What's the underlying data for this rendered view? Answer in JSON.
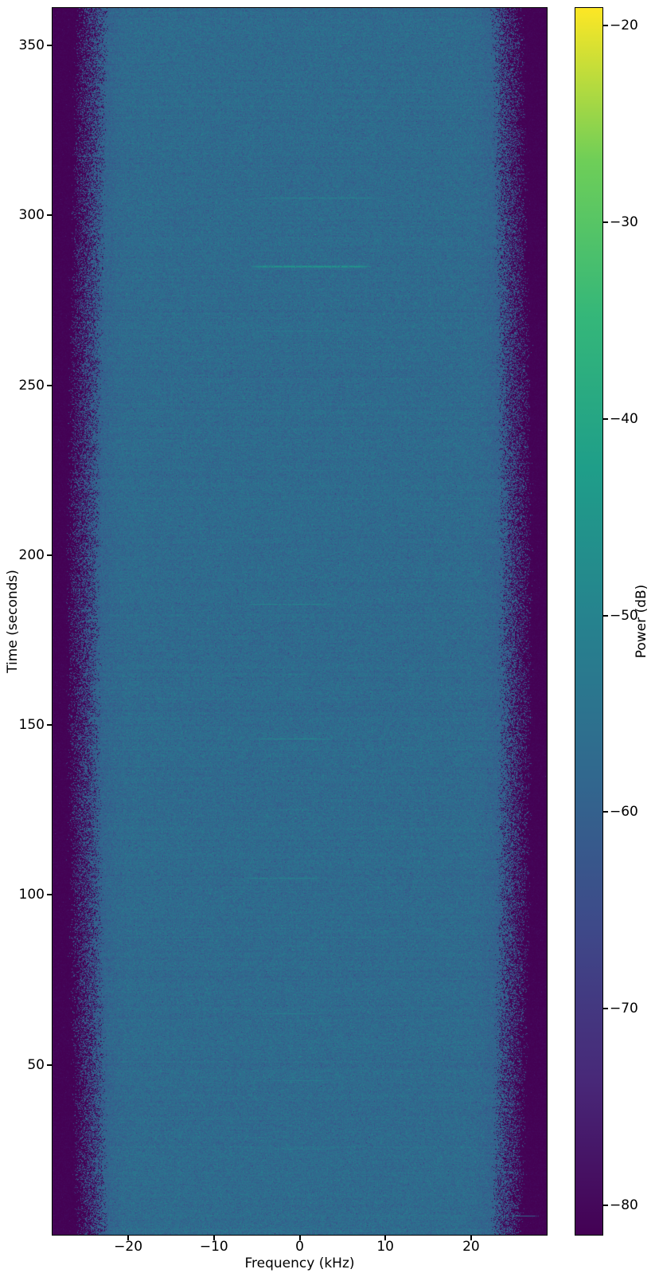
{
  "chart_data": {
    "type": "heatmap",
    "subtype": "spectrogram",
    "title": "",
    "xlabel": "Frequency (kHz)",
    "ylabel": "Time (seconds)",
    "colorbar_label": "Power (dB)",
    "xlim": [
      -28.83,
      28.83
    ],
    "ylim": [
      0,
      361
    ],
    "clim": [
      -81.5,
      -19.1
    ],
    "xticks": [
      -20,
      -10,
      0,
      10,
      20
    ],
    "yticks": [
      50,
      100,
      150,
      200,
      250,
      300,
      350
    ],
    "colorbar_ticks": [
      -20,
      -30,
      -40,
      -50,
      -60,
      -70,
      -80
    ],
    "grid": false,
    "legend": null,
    "colormap": {
      "name": "viridis",
      "stops": [
        "#440154",
        "#482878",
        "#3e4989",
        "#31688e",
        "#26828e",
        "#1f9e89",
        "#35b779",
        "#6ece58",
        "#fde725"
      ]
    },
    "noise_floor": {
      "passband_db": -57,
      "stopband_db": -81.3,
      "noise_sigma_db": 2.6,
      "passband_half_khz": 24.2,
      "passband_half_khz_mid_extra": 1.0,
      "transition_khz": 4.0,
      "edge_fringe_khz": 5.5,
      "edge_fringe_drop_db": 5
    },
    "bursts": [
      {
        "time_s": 305.0,
        "f0_khz": -5.3,
        "f1_khz": 9.6,
        "power_db": -50.0
      },
      {
        "time_s": 285.0,
        "f0_khz": -5.6,
        "f1_khz": 8.4,
        "power_db": -44.0
      },
      {
        "time_s": 266.0,
        "f0_khz": -5.9,
        "f1_khz": 5.5,
        "power_db": -52.0
      },
      {
        "time_s": 242.0,
        "f0_khz": -20.0,
        "f1_khz": 20.0,
        "power_db": -55.0
      },
      {
        "time_s": 225.0,
        "f0_khz": -4.0,
        "f1_khz": 3.0,
        "power_db": -55.5
      },
      {
        "time_s": 205.0,
        "f0_khz": -4.0,
        "f1_khz": 3.0,
        "power_db": -55.5
      },
      {
        "time_s": 185.5,
        "f0_khz": -6.7,
        "f1_khz": 4.3,
        "power_db": -49.0
      },
      {
        "time_s": 165.0,
        "f0_khz": -2.8,
        "f1_khz": 1.9,
        "power_db": -52.5
      },
      {
        "time_s": 146.0,
        "f0_khz": -5.6,
        "f1_khz": 3.7,
        "power_db": -49.0
      },
      {
        "time_s": 125.0,
        "f0_khz": -3.4,
        "f1_khz": 2.1,
        "power_db": -53.0
      },
      {
        "time_s": 105.0,
        "f0_khz": -7.0,
        "f1_khz": 3.1,
        "power_db": -50.0
      },
      {
        "time_s": 85.0,
        "f0_khz": -3.5,
        "f1_khz": 2.5,
        "power_db": -54.0
      },
      {
        "time_s": 65.0,
        "f0_khz": -5.3,
        "f1_khz": 3.1,
        "power_db": -51.0
      },
      {
        "time_s": 45.3,
        "f0_khz": -4.4,
        "f1_khz": 4.0,
        "power_db": -52.5
      },
      {
        "time_s": 25.3,
        "f0_khz": -4.4,
        "f1_khz": 4.0,
        "power_db": -52.5
      },
      {
        "time_s": 5.4,
        "f0_khz": -16.0,
        "f1_khz": 28.0,
        "power_db": -55.5
      }
    ]
  }
}
